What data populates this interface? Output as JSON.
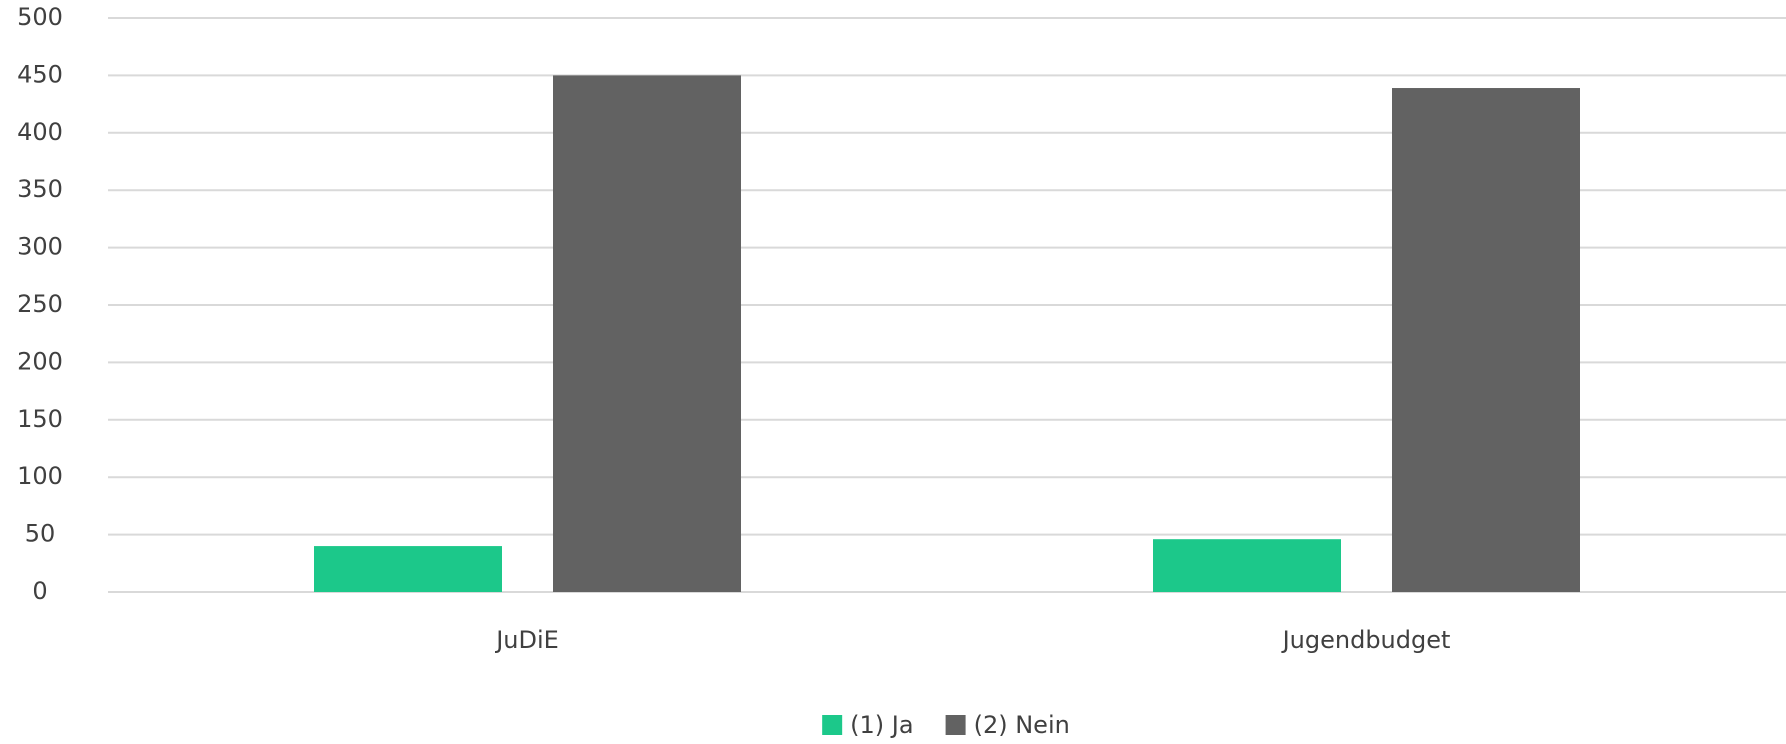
{
  "chart_data": {
    "type": "bar",
    "categories": [
      "JuDiE",
      "Jugendbudget"
    ],
    "series": [
      {
        "name": "(1) Ja",
        "color": "#1cc88a",
        "values": [
          40,
          46
        ]
      },
      {
        "name": "(2) Nein",
        "color": "#626262",
        "values": [
          450,
          439
        ]
      }
    ],
    "ylim": [
      0,
      500
    ],
    "yticks": [
      0,
      50,
      100,
      150,
      200,
      250,
      300,
      350,
      400,
      450,
      500
    ],
    "grid": true,
    "legend": "bottom"
  }
}
